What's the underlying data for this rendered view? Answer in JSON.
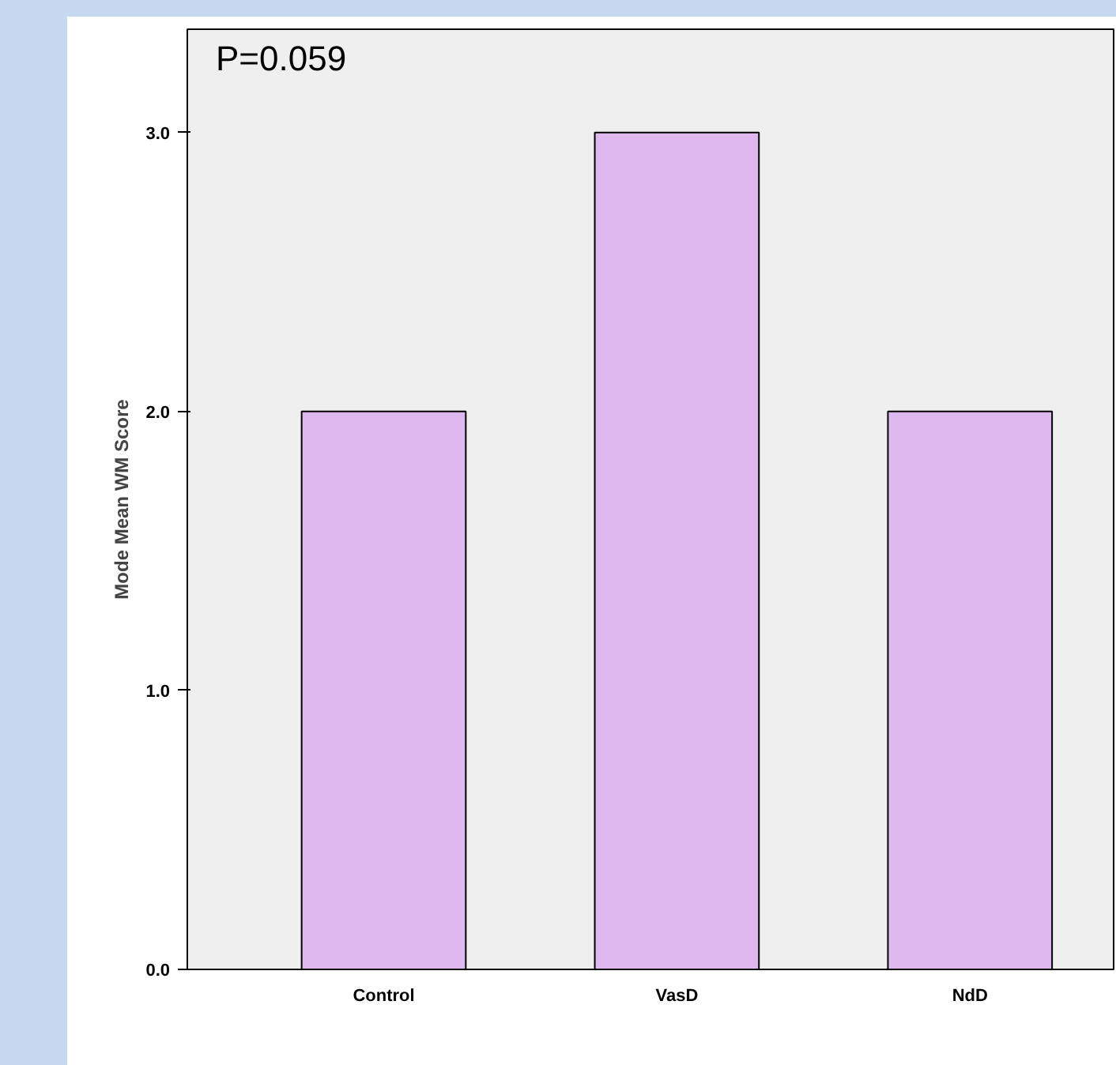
{
  "chart_data": {
    "type": "bar",
    "ylabel": "Mode Mean WM Score",
    "categories": [
      "Control",
      "VasD",
      "NdD"
    ],
    "values": [
      2.0,
      3.0,
      2.0
    ],
    "color": "#dfb8f0",
    "ylim": [
      0,
      3.37
    ],
    "yticks": [
      {
        "value": 0,
        "label": "0.0"
      },
      {
        "value": 1,
        "label": "1.0"
      },
      {
        "value": 2,
        "label": "2.0"
      },
      {
        "value": 3,
        "label": "3.0"
      }
    ],
    "grid": false,
    "annotations": [
      "P=0.059"
    ]
  }
}
